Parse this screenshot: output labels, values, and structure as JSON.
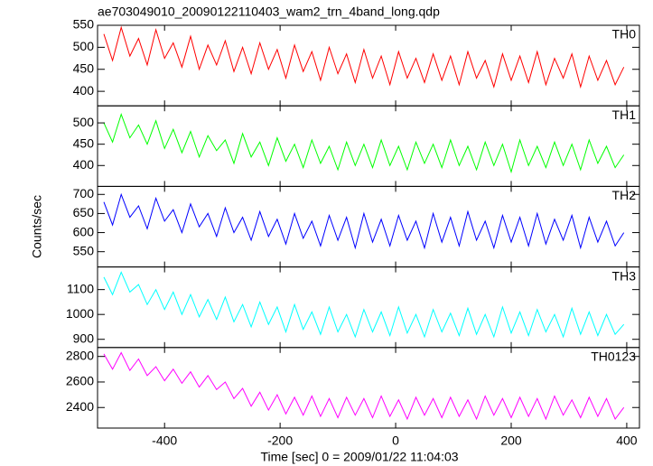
{
  "chart_data": [
    {
      "type": "line",
      "title": "ae703049010_20090122110403_wam2_trn_4band_long.qdp",
      "x": [
        -505,
        -490,
        -475,
        -460,
        -445,
        -430,
        -415,
        -400,
        -385,
        -370,
        -355,
        -340,
        -325,
        -310,
        -295,
        -280,
        -265,
        -250,
        -235,
        -220,
        -205,
        -190,
        -175,
        -160,
        -145,
        -130,
        -115,
        -100,
        -85,
        -70,
        -55,
        -40,
        -25,
        -10,
        5,
        20,
        35,
        50,
        65,
        80,
        95,
        110,
        125,
        140,
        155,
        170,
        185,
        200,
        215,
        230,
        245,
        260,
        275,
        290,
        305,
        320,
        335,
        350,
        365,
        380,
        395
      ],
      "series": [
        {
          "name": "TH0",
          "color": "#ff0000",
          "values": [
            530,
            470,
            545,
            480,
            520,
            460,
            540,
            475,
            510,
            455,
            525,
            450,
            505,
            460,
            515,
            445,
            500,
            440,
            510,
            450,
            495,
            430,
            505,
            445,
            490,
            425,
            500,
            440,
            485,
            420,
            495,
            430,
            480,
            415,
            490,
            430,
            475,
            420,
            485,
            425,
            480,
            415,
            490,
            430,
            470,
            410,
            485,
            425,
            480,
            420,
            490,
            415,
            475,
            430,
            485,
            410,
            480,
            425,
            470,
            415,
            455
          ]
        }
      ],
      "xlim": [
        -516,
        422
      ],
      "xticks": [
        -400,
        -200,
        0,
        200,
        400
      ],
      "ylim": [
        367,
        550
      ],
      "yticks": [
        400,
        450,
        500,
        550
      ]
    },
    {
      "type": "line",
      "x": [
        -505,
        -490,
        -475,
        -460,
        -445,
        -430,
        -415,
        -400,
        -385,
        -370,
        -355,
        -340,
        -325,
        -310,
        -295,
        -280,
        -265,
        -250,
        -235,
        -220,
        -205,
        -190,
        -175,
        -160,
        -145,
        -130,
        -115,
        -100,
        -85,
        -70,
        -55,
        -40,
        -25,
        -10,
        5,
        20,
        35,
        50,
        65,
        80,
        95,
        110,
        125,
        140,
        155,
        170,
        185,
        200,
        215,
        230,
        245,
        260,
        275,
        290,
        305,
        320,
        335,
        350,
        365,
        380,
        395
      ],
      "series": [
        {
          "name": "TH1",
          "color": "#00ff00",
          "values": [
            500,
            455,
            520,
            465,
            495,
            450,
            505,
            440,
            485,
            430,
            480,
            420,
            470,
            435,
            460,
            405,
            475,
            420,
            455,
            400,
            465,
            410,
            450,
            395,
            460,
            405,
            445,
            390,
            455,
            400,
            450,
            395,
            460,
            400,
            445,
            390,
            455,
            405,
            450,
            395,
            460,
            400,
            445,
            390,
            455,
            400,
            450,
            385,
            460,
            400,
            445,
            395,
            455,
            400,
            450,
            390,
            460,
            405,
            445,
            395,
            425
          ]
        }
      ],
      "xlim": [
        -516,
        422
      ],
      "xticks": [
        -400,
        -200,
        0,
        200,
        400
      ],
      "ylim": [
        351,
        540
      ],
      "yticks": [
        400,
        450,
        500
      ]
    },
    {
      "type": "line",
      "ylabel": "Counts/sec",
      "x": [
        -505,
        -490,
        -475,
        -460,
        -445,
        -430,
        -415,
        -400,
        -385,
        -370,
        -355,
        -340,
        -325,
        -310,
        -295,
        -280,
        -265,
        -250,
        -235,
        -220,
        -205,
        -190,
        -175,
        -160,
        -145,
        -130,
        -115,
        -100,
        -85,
        -70,
        -55,
        -40,
        -25,
        -10,
        5,
        20,
        35,
        50,
        65,
        80,
        95,
        110,
        125,
        140,
        155,
        170,
        185,
        200,
        215,
        230,
        245,
        260,
        275,
        290,
        305,
        320,
        335,
        350,
        365,
        380,
        395
      ],
      "series": [
        {
          "name": "TH2",
          "color": "#0000ff",
          "values": [
            680,
            620,
            700,
            640,
            670,
            610,
            690,
            630,
            660,
            600,
            675,
            615,
            650,
            590,
            665,
            600,
            640,
            580,
            655,
            590,
            635,
            570,
            650,
            585,
            630,
            565,
            645,
            580,
            640,
            560,
            650,
            575,
            635,
            565,
            645,
            580,
            630,
            560,
            650,
            575,
            640,
            565,
            655,
            580,
            630,
            560,
            645,
            575,
            640,
            565,
            650,
            570,
            635,
            580,
            645,
            560,
            640,
            575,
            630,
            565,
            600
          ]
        }
      ],
      "xlim": [
        -516,
        422
      ],
      "xticks": [
        -400,
        -200,
        0,
        200,
        400
      ],
      "ylim": [
        510,
        721
      ],
      "yticks": [
        550,
        600,
        650,
        700
      ]
    },
    {
      "type": "line",
      "x": [
        -505,
        -490,
        -475,
        -460,
        -445,
        -430,
        -415,
        -400,
        -385,
        -370,
        -355,
        -340,
        -325,
        -310,
        -295,
        -280,
        -265,
        -250,
        -235,
        -220,
        -205,
        -190,
        -175,
        -160,
        -145,
        -130,
        -115,
        -100,
        -85,
        -70,
        -55,
        -40,
        -25,
        -10,
        5,
        20,
        35,
        50,
        65,
        80,
        95,
        110,
        125,
        140,
        155,
        170,
        185,
        200,
        215,
        230,
        245,
        260,
        275,
        290,
        305,
        320,
        335,
        350,
        365,
        380,
        395
      ],
      "series": [
        {
          "name": "TH3",
          "color": "#00ffff",
          "values": [
            1150,
            1080,
            1170,
            1090,
            1120,
            1040,
            1100,
            1020,
            1090,
            1000,
            1080,
            990,
            1060,
            980,
            1070,
            970,
            1040,
            950,
            1050,
            960,
            1030,
            930,
            1040,
            940,
            1010,
            920,
            1030,
            930,
            1000,
            910,
            1020,
            930,
            1010,
            915,
            1030,
            925,
            1000,
            910,
            1020,
            930,
            1005,
            915,
            1025,
            920,
            1000,
            910,
            1030,
            925,
            1010,
            915,
            1020,
            930,
            1000,
            910,
            1025,
            920,
            1010,
            915,
            1000,
            920,
            960
          ]
        }
      ],
      "xlim": [
        -516,
        422
      ],
      "xticks": [
        -400,
        -200,
        0,
        200,
        400
      ],
      "ylim": [
        867,
        1191
      ],
      "yticks": [
        900,
        1000,
        1100
      ]
    },
    {
      "type": "line",
      "xlabel": "Time [sec] 0 = 2009/01/22 11:04:03",
      "x": [
        -505,
        -490,
        -475,
        -460,
        -445,
        -430,
        -415,
        -400,
        -385,
        -370,
        -355,
        -340,
        -325,
        -310,
        -295,
        -280,
        -265,
        -250,
        -235,
        -220,
        -205,
        -190,
        -175,
        -160,
        -145,
        -130,
        -115,
        -100,
        -85,
        -70,
        -55,
        -40,
        -25,
        -10,
        5,
        20,
        35,
        50,
        65,
        80,
        95,
        110,
        125,
        140,
        155,
        170,
        185,
        200,
        215,
        230,
        245,
        260,
        275,
        290,
        305,
        320,
        335,
        350,
        365,
        380,
        395
      ],
      "series": [
        {
          "name": "TH0123",
          "color": "#ff00ff",
          "values": [
            2820,
            2700,
            2830,
            2690,
            2780,
            2650,
            2720,
            2610,
            2700,
            2590,
            2680,
            2560,
            2650,
            2540,
            2600,
            2470,
            2550,
            2410,
            2520,
            2380,
            2500,
            2350,
            2480,
            2340,
            2490,
            2330,
            2470,
            2320,
            2480,
            2340,
            2470,
            2320,
            2490,
            2330,
            2460,
            2310,
            2480,
            2340,
            2470,
            2320,
            2480,
            2330,
            2460,
            2310,
            2490,
            2340,
            2470,
            2320,
            2480,
            2330,
            2470,
            2310,
            2490,
            2340,
            2460,
            2320,
            2480,
            2330,
            2470,
            2310,
            2400
          ]
        }
      ],
      "xlim": [
        -516,
        422
      ],
      "xticks": [
        -400,
        -200,
        0,
        200,
        400
      ],
      "ylim": [
        2239,
        2870
      ],
      "yticks": [
        2400,
        2600,
        2800
      ]
    }
  ]
}
